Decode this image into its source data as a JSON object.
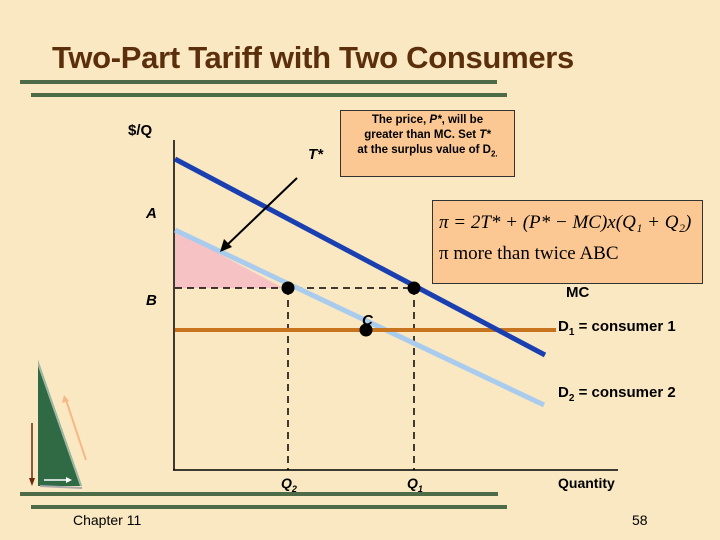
{
  "title": "Two-Part Tariff with Two Consumers",
  "diagram": {
    "y_axis_label": "$/Q",
    "x_axis_label": "Quantity",
    "point_labels": {
      "A": "A",
      "B": "B",
      "C": "C"
    },
    "t_star_label": "T*",
    "mc_label": "MC",
    "d1_label": {
      "prefix": "D",
      "sub": "1",
      "suffix": " = consumer 1"
    },
    "d2_label": {
      "prefix": "D",
      "sub": "2",
      "suffix": " = consumer 2"
    },
    "q2_label": {
      "prefix": "Q",
      "sub": "2"
    },
    "q1_label": {
      "prefix": "Q",
      "sub": "1"
    },
    "note": {
      "line1_a": "The price, ",
      "line1_b": "P*",
      "line1_c": ", will be",
      "line2_a": "greater than MC.  Set ",
      "line2_b": "T*",
      "line3_a": "at the surplus value of D",
      "line3_sub": "2."
    },
    "formula": {
      "line1": "π = 2T* + (P* − MC)x(Q₁ + Q₂)",
      "line2": "π  more than twice ABC"
    },
    "colors": {
      "d1": "#1a3fb0",
      "d2": "#a9cbee",
      "mc": "#c8731e",
      "surplus": "#f7c2c4",
      "title": "#5b2f0c",
      "rule": "#4e6b47"
    }
  },
  "footer": {
    "chapter": "Chapter 11",
    "page": "58"
  }
}
